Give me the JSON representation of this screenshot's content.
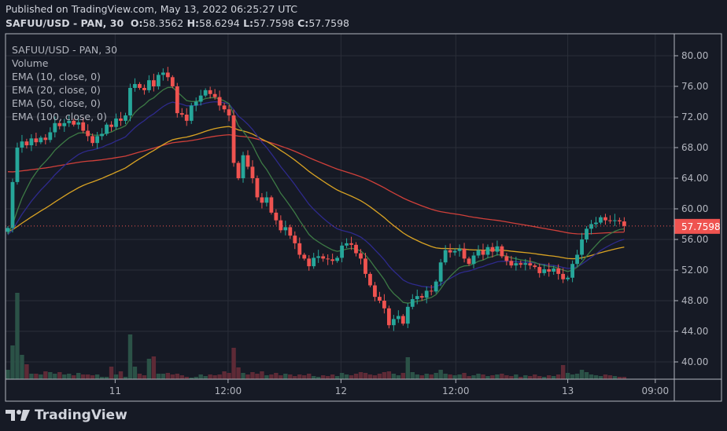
{
  "header": {
    "published": "Published on TradingView.com, May 13, 2022 06:25:27 UTC",
    "symbol": "SAFUU/USD - PAN, 30",
    "o_label": "O:",
    "o": "58.3562",
    "h_label": "H:",
    "h": "58.6294",
    "l_label": "L:",
    "l": "57.7598",
    "c_label": "C:",
    "c": "57.7598"
  },
  "legend": [
    "SAFUU/USD - PAN, 30",
    "Volume",
    "EMA (10, close, 0)",
    "EMA (20, close, 0)",
    "EMA (50, close, 0)",
    "EMA (100, close, 0)"
  ],
  "logo": "TradingView",
  "colors": {
    "up": "#26a69a",
    "down": "#ef5350",
    "vol_up": "#2b5247",
    "vol_down": "#5e2a36",
    "ema10": "#3d7a45",
    "ema20": "#2e2a8c",
    "ema50": "#d9a323",
    "ema100": "#d0403a",
    "last": "#ef5350"
  },
  "chart_data": {
    "type": "candlestick",
    "title": "SAFUU/USD - PAN, 30",
    "ylim": [
      37.5,
      84
    ],
    "y_ticks": [
      "80.00",
      "76.00",
      "72.00",
      "68.00",
      "64.00",
      "60.00",
      "56.00",
      "52.00",
      "48.00",
      "44.00",
      "40.00"
    ],
    "x_ticks": [
      {
        "label": "11",
        "index": 22.8
      },
      {
        "label": "12:00",
        "index": 46.8
      },
      {
        "label": "12",
        "index": 70.8
      },
      {
        "label": "12:00",
        "index": 95.2
      },
      {
        "label": "13",
        "index": 119
      },
      {
        "label": "09:00",
        "index": 137.6
      }
    ],
    "first_open": 57.0,
    "close": [
      57.5,
      63.5,
      68,
      68.8,
      68.3,
      69.2,
      68.7,
      69.3,
      69.0,
      70.0,
      71.2,
      70.8,
      71.2,
      71.5,
      71.0,
      71.3,
      70.2,
      69.5,
      68.6,
      69.5,
      69.8,
      71.0,
      70.7,
      71.8,
      71.5,
      72.2,
      75.8,
      76.3,
      75.8,
      75.5,
      76.8,
      76.0,
      77.5,
      77.8,
      77.2,
      76.0,
      72.5,
      72.3,
      71.5,
      73.5,
      74.0,
      74.8,
      75.5,
      75.0,
      74.6,
      73.5,
      73.0,
      72.2,
      66.0,
      64.0,
      67.0,
      65.5,
      64.0,
      61.5,
      60.8,
      61.5,
      59.5,
      58.5,
      57.2,
      57.6,
      56.5,
      55.5,
      54.0,
      53.5,
      52.5,
      53.6,
      53.8,
      53.5,
      53.4,
      53.2,
      53.6,
      55.2,
      55.5,
      55.3,
      54.2,
      53.5,
      51.5,
      50.0,
      48.5,
      48.0,
      47.0,
      44.8,
      45.6,
      46.0,
      45.0,
      47.2,
      48.2,
      48.6,
      48.4,
      49.3,
      49.2,
      50.5,
      53.0,
      54.6,
      54.3,
      54.5,
      54.8,
      53.5,
      52.8,
      53.9,
      54.6,
      54.0,
      55.0,
      54.4,
      55.1,
      53.8,
      53.2,
      52.6,
      52.9,
      52.7,
      52.9,
      52.6,
      52.4,
      51.6,
      52.1,
      51.8,
      52.2,
      51.5,
      50.8,
      51.0,
      52.8,
      54.0,
      56.0,
      57.4,
      58.0,
      58.2,
      58.9,
      58.5,
      58.4,
      58.5,
      58.3562,
      57.7598
    ],
    "volume": [
      12,
      43,
      110,
      31,
      19,
      7,
      7,
      6,
      10,
      9,
      7,
      9,
      6,
      7,
      5,
      8,
      6,
      6,
      5,
      6,
      3,
      3,
      16,
      6,
      10,
      3,
      57,
      16,
      7,
      5,
      26,
      29,
      7,
      7,
      8,
      6,
      7,
      5,
      3,
      2,
      3,
      6,
      4,
      6,
      5,
      6,
      10,
      8,
      40,
      15,
      8,
      6,
      9,
      7,
      10,
      5,
      6,
      8,
      5,
      7,
      6,
      4,
      6,
      5,
      7,
      4,
      3,
      5,
      4,
      6,
      4,
      8,
      6,
      5,
      7,
      9,
      8,
      6,
      5,
      7,
      9,
      10,
      7,
      5,
      8,
      28,
      9,
      6,
      5,
      7,
      6,
      8,
      12,
      7,
      6,
      5,
      6,
      8,
      4,
      5,
      7,
      6,
      4,
      5,
      6,
      7,
      5,
      4,
      6,
      3,
      5,
      4,
      6,
      4,
      3,
      5,
      4,
      6,
      18,
      8,
      6,
      7,
      12,
      9,
      6,
      5,
      4,
      6,
      5,
      4,
      3,
      3
    ],
    "ema": [
      {
        "name": "EMA 10",
        "length": 10,
        "seed": 56.5
      },
      {
        "name": "EMA 20",
        "length": 20,
        "seed": 56.5
      },
      {
        "name": "EMA 50",
        "length": 50,
        "seed": 57.0
      },
      {
        "name": "EMA 100",
        "length": 100,
        "seed": 65.0
      }
    ],
    "last_price": "57.7598",
    "last_value": 57.7598
  }
}
